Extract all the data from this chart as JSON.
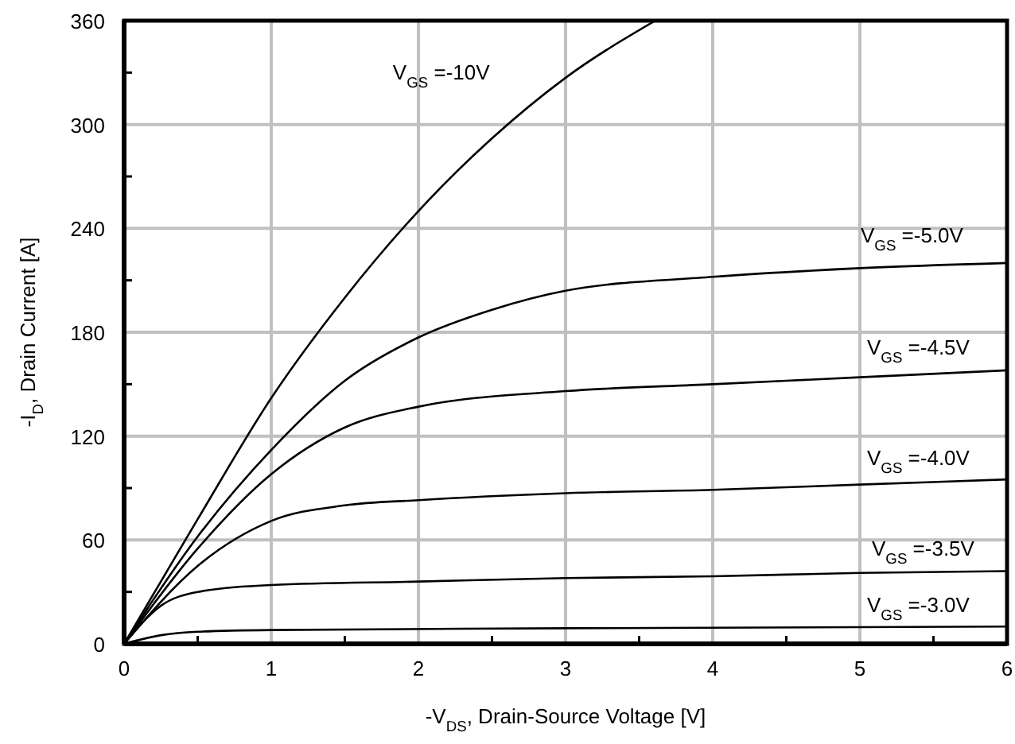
{
  "chart_data": {
    "type": "line",
    "xlabel": "-V$_{DS}$, Drain-Source Voltage [V]",
    "ylabel": "-I$_{D}$, Drain Current [A]",
    "xlim": [
      0,
      6
    ],
    "xticks": [
      0,
      {
        "value": 0.5,
        "label": null
      },
      1,
      {
        "value": 1.5,
        "label": null
      },
      2,
      {
        "value": 2.5,
        "label": null
      },
      3,
      {
        "value": 3.5,
        "label": null
      },
      4,
      {
        "value": 4.5,
        "label": null
      },
      5,
      {
        "value": 5.5,
        "label": null
      },
      6
    ],
    "ylim": [
      0,
      360
    ],
    "yticks": [
      0,
      {
        "value": 30,
        "label": null
      },
      60,
      {
        "value": 90,
        "label": null
      },
      120,
      {
        "value": 150,
        "label": null
      },
      180,
      {
        "value": 210,
        "label": null
      },
      240,
      {
        "value": 270,
        "label": null
      },
      300,
      {
        "value": 330,
        "label": null
      },
      360
    ],
    "grid": true,
    "marker": "none",
    "line_style": "solid",
    "series": [
      {
        "name": "V$_{GS}$ =-10V",
        "color": "#000000",
        "x": [
          0,
          0.5,
          1,
          1.5,
          2,
          2.5,
          3,
          3.61
        ],
        "values": [
          0,
          72,
          142,
          200,
          250,
          292,
          327,
          360
        ]
      },
      {
        "name": "V$_{GS}$ =-5.0V",
        "color": "#000000",
        "x": [
          0,
          0.5,
          1,
          1.5,
          2,
          2.5,
          3,
          4,
          5,
          6
        ],
        "values": [
          0,
          62,
          112,
          152,
          177,
          193,
          204,
          212,
          217,
          220
        ]
      },
      {
        "name": "V$_{GS}$ =-4.5V",
        "color": "#000000",
        "x": [
          0,
          0.5,
          1,
          1.5,
          2,
          3,
          4,
          5,
          6
        ],
        "values": [
          0,
          55,
          98,
          125,
          137,
          146,
          150,
          154,
          158
        ]
      },
      {
        "name": "V$_{GS}$ =-4.0V",
        "color": "#000000",
        "x": [
          0,
          0.5,
          1,
          1.5,
          2,
          3,
          4,
          5,
          6
        ],
        "values": [
          0,
          45,
          71,
          80,
          83,
          87,
          89,
          92,
          95
        ]
      },
      {
        "name": "V$_{GS}$ =-3.5V",
        "color": "#000000",
        "x": [
          0,
          0.25,
          0.5,
          1,
          2,
          3,
          4,
          5,
          6
        ],
        "values": [
          0,
          22,
          30,
          34,
          36,
          38,
          39,
          41,
          42
        ]
      },
      {
        "name": "V$_{GS}$ =-3.0V",
        "color": "#000000",
        "x": [
          0,
          0.25,
          0.5,
          1,
          3,
          6
        ],
        "values": [
          0,
          5,
          7,
          8,
          9,
          10
        ]
      }
    ]
  }
}
